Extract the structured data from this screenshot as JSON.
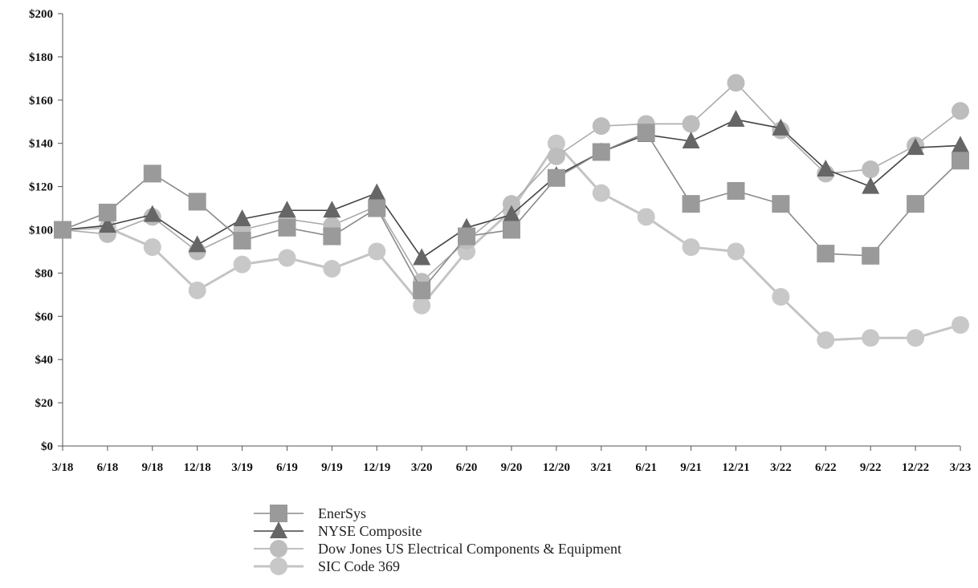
{
  "chart_data": {
    "type": "line",
    "categories": [
      "3/18",
      "6/18",
      "9/18",
      "12/18",
      "3/19",
      "6/19",
      "9/19",
      "12/19",
      "3/20",
      "6/20",
      "9/20",
      "12/20",
      "3/21",
      "6/21",
      "9/21",
      "12/21",
      "3/22",
      "6/22",
      "9/22",
      "12/22",
      "3/23"
    ],
    "y_ticks": [
      "$0",
      "$20",
      "$40",
      "$60",
      "$80",
      "$100",
      "$120",
      "$140",
      "$160",
      "$180",
      "$200"
    ],
    "ylim": [
      0,
      200
    ],
    "grid": false,
    "legend_position": "bottom",
    "series": [
      {
        "name": "EnerSys",
        "marker": "square",
        "color": "#9a9a9a",
        "line_color": "#8a8a8a",
        "values": [
          100,
          108,
          126,
          113,
          95,
          101,
          97,
          110,
          72,
          97,
          100,
          124,
          136,
          145,
          112,
          118,
          112,
          89,
          88,
          112,
          132
        ]
      },
      {
        "name": "NYSE Composite",
        "marker": "triangle",
        "color": "#666666",
        "line_color": "#444444",
        "values": [
          100,
          102,
          107,
          93,
          105,
          109,
          109,
          117,
          87,
          101,
          107,
          125,
          136,
          144,
          141,
          151,
          147,
          128,
          120,
          138,
          139
        ]
      },
      {
        "name": "Dow Jones US Electrical Components & Equipment",
        "marker": "circle",
        "color": "#bdbdbd",
        "line_color": "#aaaaaa",
        "values": [
          100,
          98,
          106,
          90,
          100,
          105,
          102,
          111,
          76,
          95,
          112,
          134,
          148,
          149,
          149,
          168,
          146,
          126,
          128,
          139,
          155
        ]
      },
      {
        "name": "SIC Code 369",
        "marker": "circle",
        "color": "#c8c8c8",
        "line_color": "#c4c4c4",
        "values": [
          100,
          101,
          92,
          72,
          84,
          87,
          82,
          90,
          65,
          90,
          109,
          140,
          117,
          106,
          92,
          90,
          69,
          49,
          50,
          50,
          56
        ]
      }
    ]
  }
}
